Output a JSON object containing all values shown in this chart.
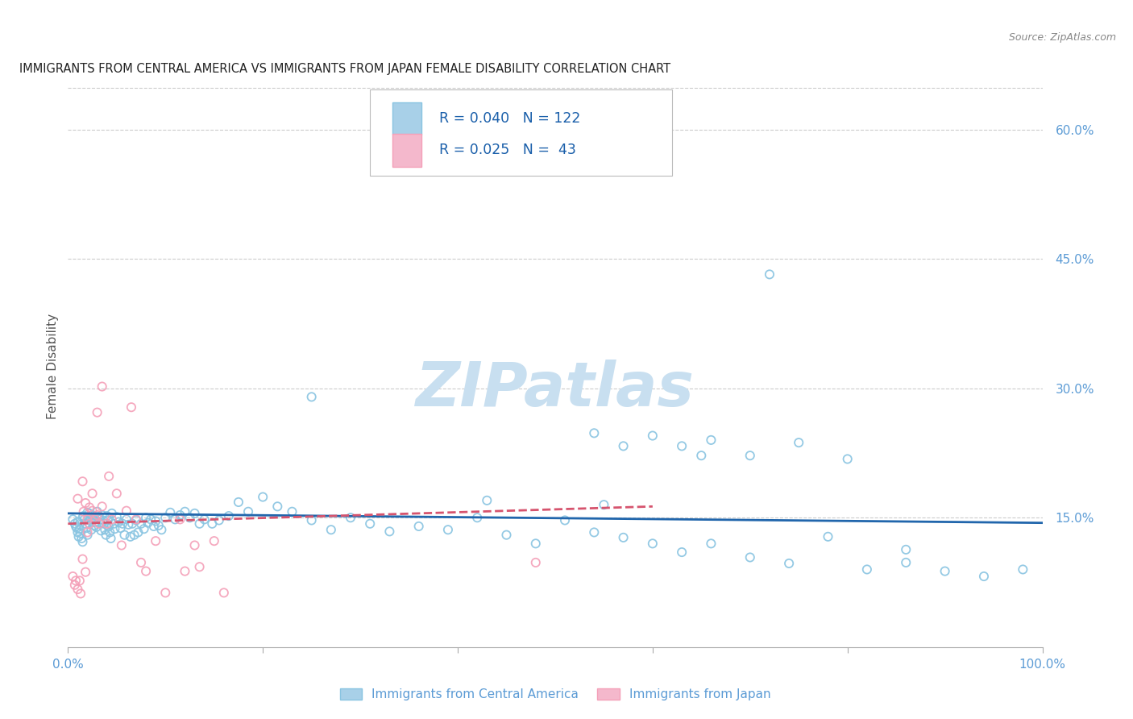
{
  "title": "IMMIGRANTS FROM CENTRAL AMERICA VS IMMIGRANTS FROM JAPAN FEMALE DISABILITY CORRELATION CHART",
  "source": "Source: ZipAtlas.com",
  "ylabel": "Female Disability",
  "xlim": [
    0.0,
    1.0
  ],
  "ylim": [
    0.0,
    0.65
  ],
  "legend_blue_R": "0.040",
  "legend_blue_N": "122",
  "legend_pink_R": "0.025",
  "legend_pink_N": " 43",
  "blue_scatter_color": "#89c4e1",
  "pink_scatter_color": "#f4a0b8",
  "blue_fill_color": "#a8d0e8",
  "pink_fill_color": "#f4b8cc",
  "blue_line_color": "#2166ac",
  "pink_line_color": "#d6546e",
  "grid_color": "#cccccc",
  "axis_tick_color": "#5b9bd5",
  "ylabel_color": "#555555",
  "title_color": "#222222",
  "source_color": "#888888",
  "legend_text_color": "#1a5faa",
  "watermark_color": "#c8dff0",
  "background_color": "#ffffff",
  "blue_scatter_x": [
    0.005,
    0.007,
    0.008,
    0.009,
    0.01,
    0.01,
    0.011,
    0.012,
    0.013,
    0.014,
    0.015,
    0.015,
    0.016,
    0.017,
    0.018,
    0.019,
    0.02,
    0.02,
    0.021,
    0.022,
    0.022,
    0.023,
    0.024,
    0.025,
    0.026,
    0.027,
    0.028,
    0.029,
    0.03,
    0.031,
    0.032,
    0.033,
    0.034,
    0.035,
    0.036,
    0.037,
    0.038,
    0.039,
    0.04,
    0.041,
    0.042,
    0.043,
    0.044,
    0.045,
    0.047,
    0.048,
    0.05,
    0.052,
    0.054,
    0.056,
    0.058,
    0.06,
    0.062,
    0.064,
    0.066,
    0.068,
    0.07,
    0.072,
    0.075,
    0.078,
    0.08,
    0.082,
    0.085,
    0.088,
    0.09,
    0.093,
    0.096,
    0.1,
    0.105,
    0.11,
    0.115,
    0.12,
    0.125,
    0.13,
    0.135,
    0.14,
    0.148,
    0.155,
    0.165,
    0.175,
    0.185,
    0.2,
    0.215,
    0.23,
    0.25,
    0.27,
    0.29,
    0.31,
    0.33,
    0.36,
    0.39,
    0.42,
    0.45,
    0.48,
    0.51,
    0.54,
    0.57,
    0.6,
    0.63,
    0.66,
    0.7,
    0.74,
    0.78,
    0.82,
    0.86,
    0.9,
    0.94,
    0.98,
    0.54,
    0.57,
    0.6,
    0.63,
    0.66,
    0.7,
    0.75,
    0.8,
    0.86,
    0.72,
    0.65,
    0.25,
    0.55,
    0.43
  ],
  "blue_scatter_y": [
    0.148,
    0.143,
    0.14,
    0.138,
    0.145,
    0.133,
    0.128,
    0.137,
    0.132,
    0.126,
    0.15,
    0.122,
    0.152,
    0.148,
    0.143,
    0.138,
    0.156,
    0.13,
    0.151,
    0.155,
    0.143,
    0.149,
    0.136,
    0.153,
    0.148,
    0.141,
    0.145,
    0.139,
    0.157,
    0.151,
    0.144,
    0.148,
    0.135,
    0.153,
    0.147,
    0.143,
    0.136,
    0.13,
    0.152,
    0.147,
    0.14,
    0.133,
    0.126,
    0.155,
    0.143,
    0.137,
    0.151,
    0.145,
    0.138,
    0.143,
    0.13,
    0.148,
    0.142,
    0.128,
    0.143,
    0.13,
    0.147,
    0.133,
    0.143,
    0.137,
    0.15,
    0.144,
    0.148,
    0.14,
    0.146,
    0.141,
    0.136,
    0.15,
    0.156,
    0.148,
    0.153,
    0.157,
    0.15,
    0.155,
    0.143,
    0.148,
    0.143,
    0.147,
    0.152,
    0.168,
    0.157,
    0.174,
    0.163,
    0.157,
    0.147,
    0.136,
    0.15,
    0.143,
    0.134,
    0.14,
    0.136,
    0.15,
    0.13,
    0.12,
    0.147,
    0.133,
    0.127,
    0.12,
    0.11,
    0.12,
    0.104,
    0.097,
    0.128,
    0.09,
    0.098,
    0.088,
    0.082,
    0.09,
    0.248,
    0.233,
    0.245,
    0.233,
    0.24,
    0.222,
    0.237,
    0.218,
    0.113,
    0.432,
    0.222,
    0.29,
    0.165,
    0.17
  ],
  "pink_scatter_x": [
    0.005,
    0.007,
    0.008,
    0.01,
    0.01,
    0.012,
    0.013,
    0.015,
    0.015,
    0.016,
    0.018,
    0.018,
    0.02,
    0.02,
    0.022,
    0.022,
    0.025,
    0.025,
    0.028,
    0.03,
    0.03,
    0.032,
    0.035,
    0.035,
    0.04,
    0.042,
    0.045,
    0.05,
    0.055,
    0.06,
    0.065,
    0.07,
    0.075,
    0.08,
    0.09,
    0.1,
    0.115,
    0.12,
    0.13,
    0.135,
    0.15,
    0.16,
    0.48
  ],
  "pink_scatter_y": [
    0.082,
    0.072,
    0.077,
    0.067,
    0.172,
    0.077,
    0.062,
    0.102,
    0.192,
    0.157,
    0.087,
    0.167,
    0.133,
    0.148,
    0.162,
    0.143,
    0.158,
    0.178,
    0.148,
    0.153,
    0.272,
    0.143,
    0.302,
    0.163,
    0.143,
    0.198,
    0.148,
    0.178,
    0.118,
    0.158,
    0.278,
    0.148,
    0.098,
    0.088,
    0.123,
    0.063,
    0.148,
    0.088,
    0.118,
    0.093,
    0.123,
    0.063,
    0.098
  ],
  "blue_trendline_x": [
    0.0,
    1.0
  ],
  "blue_trendline_y": [
    0.155,
    0.144
  ],
  "pink_trendline_x": [
    0.0,
    0.6
  ],
  "pink_trendline_y": [
    0.143,
    0.163
  ]
}
